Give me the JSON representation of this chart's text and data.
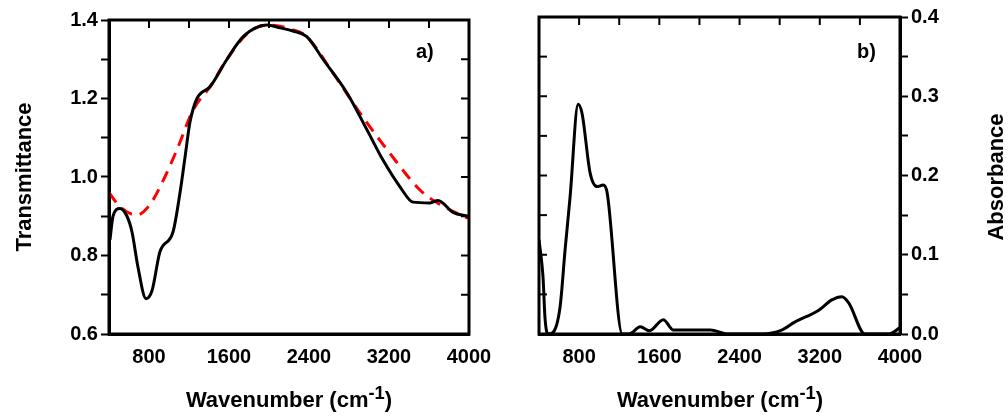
{
  "chart_data": [
    {
      "type": "line",
      "xlabel": "Wavenumber (cm$^{-1}$)",
      "ylabel": "Transmittance",
      "annotations": [
        "a)"
      ],
      "xlim": [
        400,
        4000
      ],
      "xticks": [
        {
          "value": 400,
          "label": null
        },
        800,
        {
          "value": 1200,
          "label": null
        },
        1600,
        {
          "value": 2000,
          "label": null
        },
        2400,
        {
          "value": 2800,
          "label": null
        },
        3200,
        {
          "value": 3600,
          "label": null
        },
        4000
      ],
      "ylim": [
        0.6,
        1.4
      ],
      "yticks": [
        0.6,
        {
          "value": 0.7,
          "label": null
        },
        0.8,
        {
          "value": 0.9,
          "label": null
        },
        {
          "value": 1.0,
          "label": "1.0"
        },
        {
          "value": 1.1,
          "label": null
        },
        1.2,
        {
          "value": 1.3,
          "label": null
        },
        1.4
      ],
      "grid": false,
      "legend": false,
      "marker": "none",
      "series": [
        {
          "color": "#000000",
          "line_style": "solid",
          "x": [
            410,
            440,
            510,
            580,
            630,
            690,
            770,
            830,
            910,
            1040,
            1110,
            1160,
            1210,
            1280,
            1410,
            1580,
            1740,
            1980,
            2110,
            2240,
            2380,
            2540,
            2780,
            2980,
            3140,
            3310,
            3440,
            3610,
            3690,
            3840,
            3990
          ],
          "values": [
            0.84,
            0.9,
            0.92,
            0.9,
            0.86,
            0.77,
            0.69,
            0.71,
            0.81,
            0.86,
            0.96,
            1.05,
            1.14,
            1.2,
            1.23,
            1.3,
            1.357,
            1.387,
            1.38,
            1.372,
            1.357,
            1.3,
            1.214,
            1.12,
            1.043,
            0.975,
            0.936,
            0.934,
            0.94,
            0.91,
            0.9
          ]
        },
        {
          "color": "#ff0000",
          "line_style": "dashed",
          "x": [
            400,
            510,
            680,
            810,
            940,
            1080,
            1240,
            1410,
            1580,
            1780,
            1980,
            2240,
            2380,
            2640,
            2910,
            3210,
            3510,
            3710,
            3990
          ],
          "values": [
            0.96,
            0.924,
            0.903,
            0.93,
            0.99,
            1.07,
            1.17,
            1.23,
            1.3,
            1.365,
            1.387,
            1.375,
            1.357,
            1.265,
            1.163,
            1.06,
            0.967,
            0.93,
            0.895
          ]
        }
      ]
    },
    {
      "type": "line",
      "xlabel": "Wavenumber (cm$^{-1}$)",
      "y2label": "Absorbance",
      "annotations": [
        "b)"
      ],
      "xlim": [
        400,
        4000
      ],
      "xticks": [
        {
          "value": 400,
          "label": null
        },
        800,
        {
          "value": 1200,
          "label": null
        },
        1600,
        {
          "value": 2000,
          "label": null
        },
        2400,
        {
          "value": 2800,
          "label": null
        },
        3200,
        {
          "value": 3600,
          "label": null
        },
        4000
      ],
      "y2lim": [
        0,
        0.4
      ],
      "y2ticks": [
        {
          "value": 0,
          "label": "0.0"
        },
        {
          "value": 0.05,
          "label": null
        },
        0.1,
        {
          "value": 0.15,
          "label": null
        },
        0.2,
        {
          "value": 0.25,
          "label": null
        },
        0.3,
        {
          "value": 0.35,
          "label": null
        },
        0.4
      ],
      "grid": false,
      "legend": false,
      "marker": "none",
      "series": [
        {
          "color": "#000000",
          "line_style": "solid",
          "axis": "y2",
          "x": [
            400,
            440,
            460,
            490,
            540,
            610,
            660,
            710,
            790,
            830,
            910,
            980,
            1040,
            1080,
            1230,
            1300,
            1410,
            1500,
            1640,
            1740,
            2110,
            2280,
            2620,
            2820,
            2950,
            3190,
            3320,
            3420,
            3490,
            3650,
            3890,
            4000
          ],
          "values": [
            0.119,
            0.072,
            0.02,
            0.0,
            0.002,
            0.034,
            0.106,
            0.173,
            0.29,
            0.278,
            0.203,
            0.186,
            0.188,
            0.178,
            0.0,
            0.0,
            0.009,
            0.004,
            0.018,
            0.005,
            0.005,
            0.0,
            0.0,
            0.005,
            0.015,
            0.03,
            0.043,
            0.047,
            0.039,
            0.0,
            0.0,
            0.008
          ]
        }
      ]
    }
  ]
}
